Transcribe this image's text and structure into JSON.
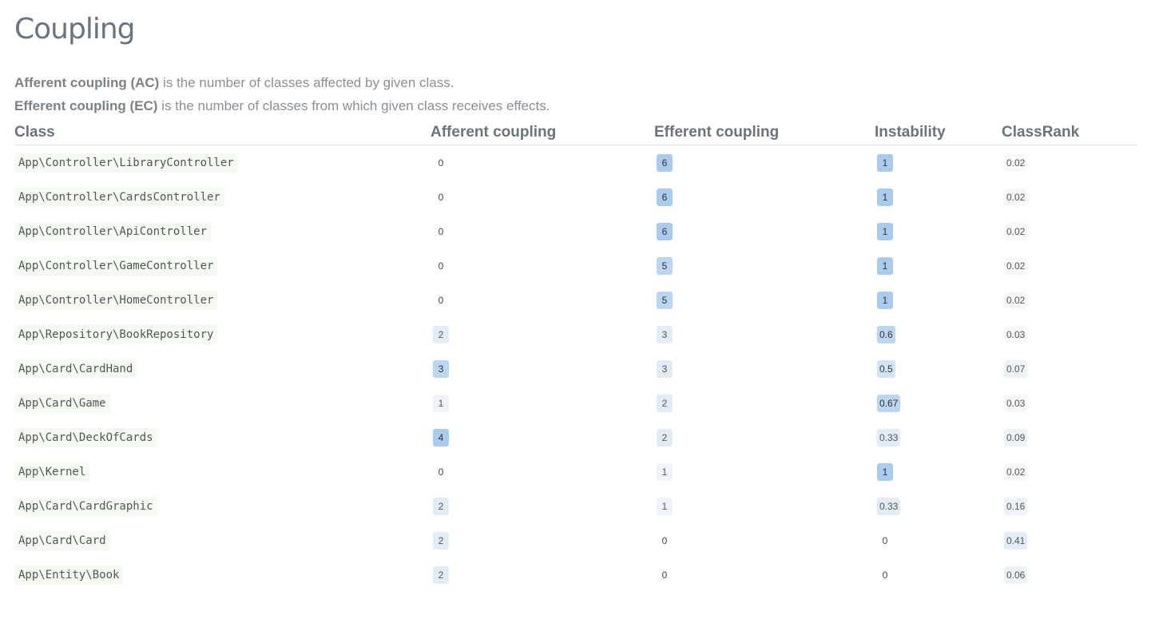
{
  "title": "Coupling",
  "descriptions": [
    {
      "term": "Afferent coupling (AC)",
      "text": " is the number of classes affected by given class."
    },
    {
      "term": "Efferent coupling (EC)",
      "text": " is the number of classes from which given class receives effects."
    }
  ],
  "columns": [
    "Class",
    "Afferent coupling",
    "Efferent coupling",
    "Instability",
    "ClassRank"
  ],
  "rows": [
    {
      "class": "App\\Controller\\LibraryController",
      "ac": "0",
      "ec": "6",
      "instability": "1",
      "rank": "0.02"
    },
    {
      "class": "App\\Controller\\CardsController",
      "ac": "0",
      "ec": "6",
      "instability": "1",
      "rank": "0.02"
    },
    {
      "class": "App\\Controller\\ApiController",
      "ac": "0",
      "ec": "6",
      "instability": "1",
      "rank": "0.02"
    },
    {
      "class": "App\\Controller\\GameController",
      "ac": "0",
      "ec": "5",
      "instability": "1",
      "rank": "0.02"
    },
    {
      "class": "App\\Controller\\HomeController",
      "ac": "0",
      "ec": "5",
      "instability": "1",
      "rank": "0.02"
    },
    {
      "class": "App\\Repository\\BookRepository",
      "ac": "2",
      "ec": "3",
      "instability": "0.6",
      "rank": "0.03"
    },
    {
      "class": "App\\Card\\CardHand",
      "ac": "3",
      "ec": "3",
      "instability": "0.5",
      "rank": "0.07"
    },
    {
      "class": "App\\Card\\Game",
      "ac": "1",
      "ec": "2",
      "instability": "0.67",
      "rank": "0.03"
    },
    {
      "class": "App\\Card\\DeckOfCards",
      "ac": "4",
      "ec": "2",
      "instability": "0.33",
      "rank": "0.09"
    },
    {
      "class": "App\\Kernel",
      "ac": "0",
      "ec": "1",
      "instability": "1",
      "rank": "0.02"
    },
    {
      "class": "App\\Card\\CardGraphic",
      "ac": "2",
      "ec": "1",
      "instability": "0.33",
      "rank": "0.16"
    },
    {
      "class": "App\\Card\\Card",
      "ac": "2",
      "ec": "0",
      "instability": "0",
      "rank": "0.41"
    },
    {
      "class": "App\\Entity\\Book",
      "ac": "2",
      "ec": "0",
      "instability": "0",
      "rank": "0.06"
    }
  ]
}
